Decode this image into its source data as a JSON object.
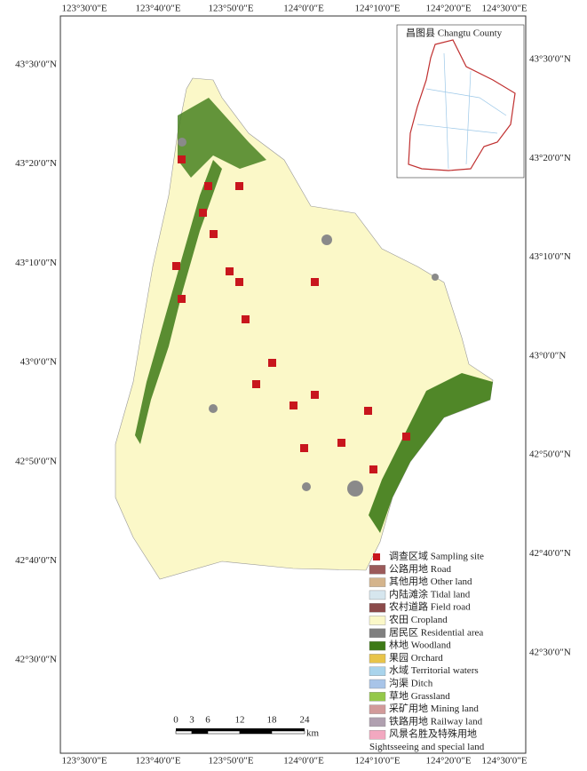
{
  "graticule": {
    "top": [
      "123°30′0″E",
      "123°40′0″E",
      "123°50′0″E",
      "124°0′0″E",
      "124°10′0″E",
      "124°20′0″E",
      "124°30′0″E"
    ],
    "bottom": [
      "123°30′0″E",
      "123°40′0″E",
      "123°50′0″E",
      "124°0′0″E",
      "124°10′0″E",
      "124°20′0″E",
      "124°30′0″E"
    ],
    "left": [
      "43°30′0″N",
      "43°20′0″N",
      "43°10′0″N",
      "43°0′0″N",
      "42°50′0″N",
      "42°40′0″N",
      "42°30′0″N"
    ],
    "right": [
      "43°30′0″N",
      "43°20′0″N",
      "43°10′0″N",
      "43°0′0″N",
      "42°50′0″N",
      "42°40′0″N",
      "42°30′0″N"
    ]
  },
  "inset": {
    "title": "昌图县 Changtu County"
  },
  "legend": [
    {
      "lines": [
        "调查区域 Sampling site"
      ],
      "color": "#c8161d",
      "marker": "point"
    },
    {
      "lines": [
        "公路用地 Road"
      ],
      "color": "#9b5a5a"
    },
    {
      "lines": [
        "其他用地 Other land"
      ],
      "color": "#d4b48c"
    },
    {
      "lines": [
        "内陆滩涂 Tidal land"
      ],
      "color": "#d6e6ee"
    },
    {
      "lines": [
        "农村道路 Field road"
      ],
      "color": "#8b4a4a"
    },
    {
      "lines": [
        "农田 Cropland"
      ],
      "color": "#fbf8c8"
    },
    {
      "lines": [
        "居民区 Residential area"
      ],
      "color": "#7f7f7f"
    },
    {
      "lines": [
        "林地 Woodland"
      ],
      "color": "#3d7a16"
    },
    {
      "lines": [
        "果园 Orchard"
      ],
      "color": "#e8c44a"
    },
    {
      "lines": [
        "水域 Territorial waters"
      ],
      "color": "#a9d4ec"
    },
    {
      "lines": [
        "沟渠 Ditch"
      ],
      "color": "#a8c4e8"
    },
    {
      "lines": [
        "草地 Grassland"
      ],
      "color": "#94c84a"
    },
    {
      "lines": [
        "采矿用地 Mining land"
      ],
      "color": "#d29a9a"
    },
    {
      "lines": [
        "铁路用地 Railway land"
      ],
      "color": "#b0a0b0"
    },
    {
      "lines": [
        "风景名胜及特殊用地",
        "Sightsseeing and special land"
      ],
      "color": "#f2a8c0"
    }
  ],
  "scale_bar": {
    "labels": [
      "0",
      "3",
      "6",
      "12",
      "18",
      "24"
    ],
    "unit": "km"
  }
}
